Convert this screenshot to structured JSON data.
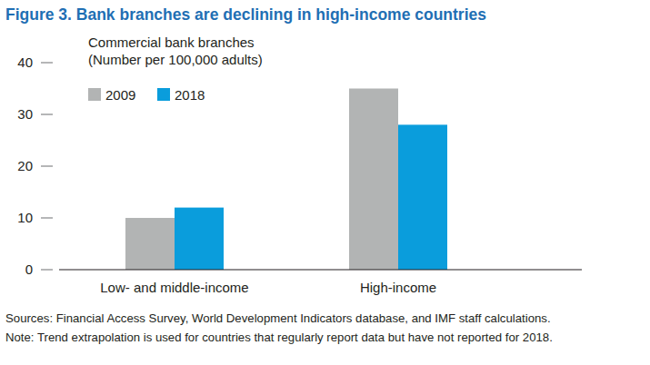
{
  "chart_data": {
    "type": "bar",
    "title": "Figure 3. Bank branches are declining in high-income countries",
    "y_label": [
      "Commercial bank branches",
      "(Number per 100,000 adults)"
    ],
    "categories": [
      "Low- and middle-income",
      "High-income"
    ],
    "series": [
      {
        "name": "2009",
        "color": "#b2b4b4",
        "values": [
          10,
          35
        ]
      },
      {
        "name": "2018",
        "color": "#0a9ddc",
        "values": [
          12,
          28
        ]
      }
    ],
    "ylim": [
      0,
      40
    ],
    "yticks": [
      0,
      10,
      20,
      30,
      40
    ],
    "grid": false,
    "legend": "top-left",
    "notes": [
      "Sources: Financial Access Survey, World Development Indicators database, and IMF staff calculations.",
      "Note: Trend extrapolation is used for countries that regularly report data but have not reported for 2018."
    ]
  }
}
